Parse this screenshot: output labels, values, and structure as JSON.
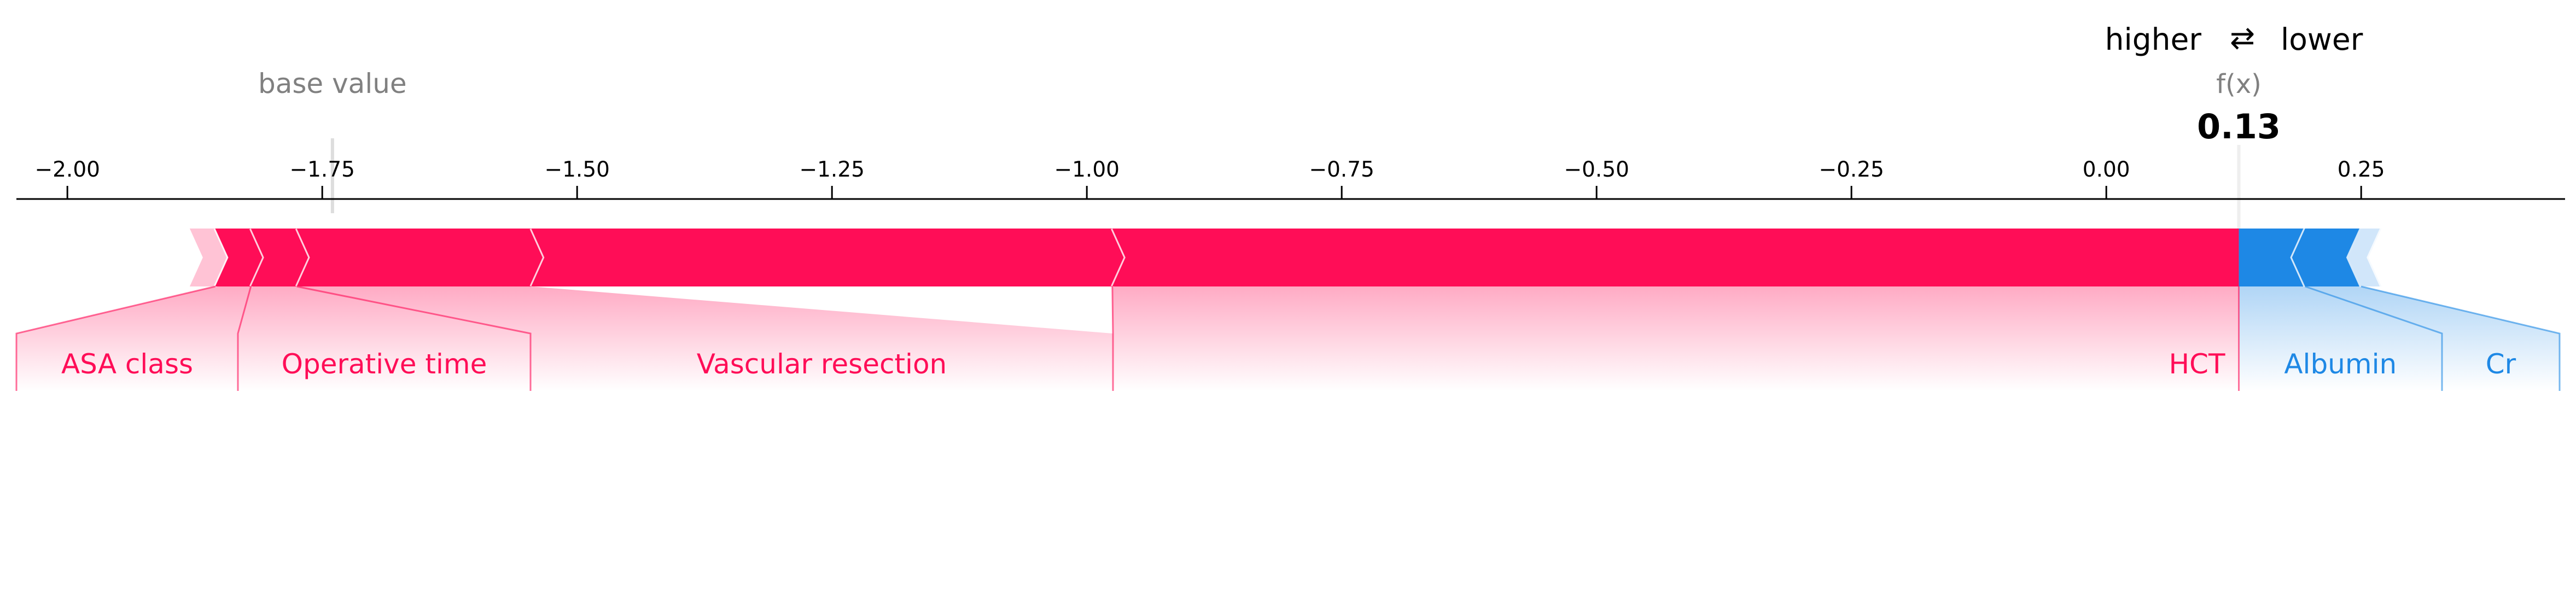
{
  "chart_data": {
    "type": "force",
    "base_value_label": "base value",
    "base_value": -1.74,
    "fx_label": "f(x)",
    "fx_value": 0.13,
    "fx_display": "0.13",
    "xlim": [
      -2.05,
      0.45
    ],
    "ticks": [
      -2.0,
      -1.75,
      -1.5,
      -1.25,
      -1.0,
      -0.75,
      -0.5,
      -0.25,
      0.0,
      0.25
    ],
    "tick_labels": [
      "−2.00",
      "−1.75",
      "−1.50",
      "−1.25",
      "−1.00",
      "−0.75",
      "−0.50",
      "−0.25",
      "0.00",
      "0.25"
    ],
    "legend": {
      "higher": "higher",
      "arrows": "⇄",
      "lower": "lower"
    },
    "colors": {
      "positive": "#ff0d57",
      "negative": "#1e88e5",
      "positive_light": "#ffc3d5",
      "negative_light": "#d1e6fa",
      "muted": "#808080",
      "axis": "#000000"
    },
    "positive_features": [
      {
        "name": "",
        "start": -1.88,
        "end": -1.855
      },
      {
        "name": "ASA class",
        "start": -1.855,
        "end": -1.82
      },
      {
        "name": "Operative time",
        "start": -1.82,
        "end": -1.775
      },
      {
        "name": "Vascular resection",
        "start": -1.775,
        "end": -1.545
      },
      {
        "name": "",
        "start": -1.545,
        "end": -0.975
      },
      {
        "name": "HCT",
        "start": -0.975,
        "end": 0.13
      }
    ],
    "negative_features": [
      {
        "name": "Albumin",
        "start": 0.13,
        "end": 0.195
      },
      {
        "name": "Cr",
        "start": 0.195,
        "end": 0.25
      },
      {
        "name": "",
        "start": 0.25,
        "end": 0.27
      }
    ]
  }
}
